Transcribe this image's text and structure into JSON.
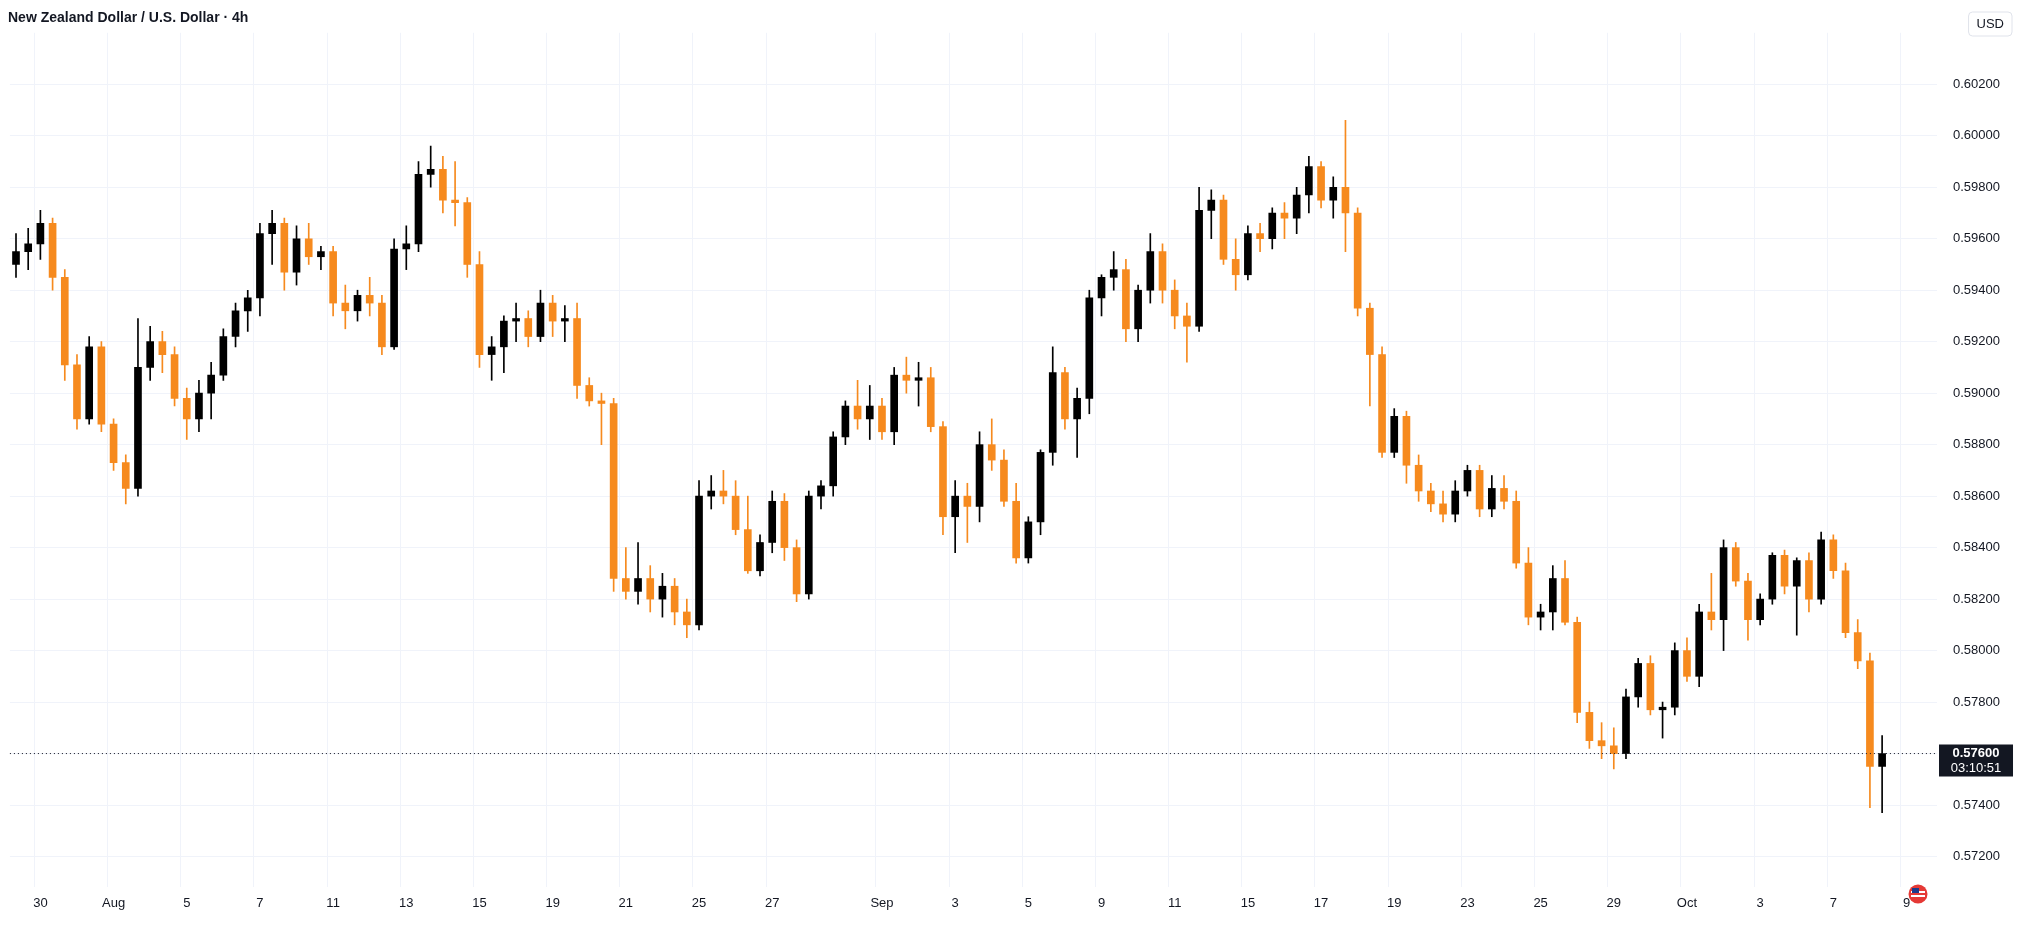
{
  "chart_data": {
    "type": "candlestick",
    "title": "New Zealand Dollar / U.S. Dollar · 4h",
    "categories": [
      null,
      null,
      "30",
      null,
      null,
      null,
      null,
      null,
      "Aug",
      null,
      null,
      null,
      null,
      null,
      "5",
      null,
      null,
      null,
      null,
      null,
      "7",
      null,
      null,
      null,
      null,
      null,
      "11",
      null,
      null,
      null,
      null,
      null,
      "13",
      null,
      null,
      null,
      null,
      null,
      "15",
      null,
      null,
      null,
      null,
      null,
      "19",
      null,
      null,
      null,
      null,
      null,
      "21",
      null,
      null,
      null,
      null,
      null,
      "25",
      null,
      null,
      null,
      null,
      null,
      "27",
      null,
      null,
      null,
      null,
      null,
      null,
      null,
      null,
      "Sep",
      null,
      null,
      null,
      null,
      null,
      "3",
      null,
      null,
      null,
      null,
      null,
      "5",
      null,
      null,
      null,
      null,
      null,
      "9",
      null,
      null,
      null,
      null,
      null,
      "11",
      null,
      null,
      null,
      null,
      null,
      "15",
      null,
      null,
      null,
      null,
      null,
      "17",
      null,
      null,
      null,
      null,
      null,
      "19",
      null,
      null,
      null,
      null,
      null,
      "23",
      null,
      null,
      null,
      null,
      null,
      "25",
      null,
      null,
      null,
      null,
      null,
      "29",
      null,
      null,
      null,
      null,
      null,
      "Oct",
      null,
      null,
      null,
      null,
      null,
      "3",
      null,
      null,
      null,
      null,
      null,
      "7",
      null,
      null,
      null,
      null,
      null,
      "9",
      null,
      null
    ],
    "ohlc": [
      [
        0.595,
        0.5962,
        0.5945,
        0.5955
      ],
      [
        0.5955,
        0.5964,
        0.5948,
        0.5958
      ],
      [
        0.5958,
        0.5971,
        0.5952,
        0.5966
      ],
      [
        0.5966,
        0.5968,
        0.594,
        0.5945
      ],
      [
        0.5945,
        0.5948,
        0.5905,
        0.5911
      ],
      [
        0.5911,
        0.5915,
        0.5886,
        0.589
      ],
      [
        0.589,
        0.5922,
        0.5888,
        0.5918
      ],
      [
        0.5918,
        0.592,
        0.5885,
        0.5888
      ],
      [
        0.5888,
        0.589,
        0.587,
        0.5873
      ],
      [
        0.5873,
        0.5876,
        0.5857,
        0.5863
      ],
      [
        0.5863,
        0.5929,
        0.586,
        0.591
      ],
      [
        0.591,
        0.5926,
        0.5905,
        0.592
      ],
      [
        0.592,
        0.5924,
        0.5908,
        0.5915
      ],
      [
        0.5915,
        0.5918,
        0.5895,
        0.5898
      ],
      [
        0.5898,
        0.5902,
        0.5882,
        0.589
      ],
      [
        0.589,
        0.5905,
        0.5885,
        0.59
      ],
      [
        0.59,
        0.5912,
        0.589,
        0.5907
      ],
      [
        0.5907,
        0.5925,
        0.5905,
        0.5922
      ],
      [
        0.5922,
        0.5935,
        0.5918,
        0.5932
      ],
      [
        0.5932,
        0.594,
        0.5924,
        0.5937
      ],
      [
        0.5937,
        0.5966,
        0.593,
        0.5962
      ],
      [
        0.5962,
        0.5971,
        0.595,
        0.5966
      ],
      [
        0.5966,
        0.5968,
        0.594,
        0.5947
      ],
      [
        0.5947,
        0.5965,
        0.5942,
        0.596
      ],
      [
        0.596,
        0.5966,
        0.595,
        0.5953
      ],
      [
        0.5953,
        0.5957,
        0.5948,
        0.5955
      ],
      [
        0.5955,
        0.5957,
        0.593,
        0.5935
      ],
      [
        0.5935,
        0.5942,
        0.5925,
        0.5932
      ],
      [
        0.5932,
        0.594,
        0.5928,
        0.5938
      ],
      [
        0.5938,
        0.5945,
        0.593,
        0.5935
      ],
      [
        0.5935,
        0.5938,
        0.5915,
        0.5918
      ],
      [
        0.5918,
        0.596,
        0.5917,
        0.5956
      ],
      [
        0.5956,
        0.5965,
        0.5948,
        0.5958
      ],
      [
        0.5958,
        0.599,
        0.5955,
        0.5985
      ],
      [
        0.5985,
        0.5996,
        0.598,
        0.5987
      ],
      [
        0.5987,
        0.5992,
        0.597,
        0.5975
      ],
      [
        0.5975,
        0.599,
        0.5965,
        0.5974
      ],
      [
        0.5974,
        0.5976,
        0.5945,
        0.595
      ],
      [
        0.595,
        0.5955,
        0.591,
        0.5915
      ],
      [
        0.5915,
        0.5922,
        0.5905,
        0.5918
      ],
      [
        0.5918,
        0.593,
        0.5908,
        0.5928
      ],
      [
        0.5928,
        0.5935,
        0.592,
        0.5929
      ],
      [
        0.5929,
        0.5932,
        0.5918,
        0.5922
      ],
      [
        0.5922,
        0.594,
        0.592,
        0.5935
      ],
      [
        0.5935,
        0.5938,
        0.5922,
        0.5928
      ],
      [
        0.5928,
        0.5934,
        0.592,
        0.5929
      ],
      [
        0.5929,
        0.5935,
        0.5898,
        0.5903
      ],
      [
        0.5903,
        0.5906,
        0.5895,
        0.5897
      ],
      [
        0.5897,
        0.59,
        0.588,
        0.5896
      ],
      [
        0.5896,
        0.5898,
        0.5823,
        0.5828
      ],
      [
        0.5828,
        0.584,
        0.582,
        0.5823
      ],
      [
        0.5823,
        0.5842,
        0.5818,
        0.5828
      ],
      [
        0.5828,
        0.5833,
        0.5815,
        0.582
      ],
      [
        0.582,
        0.583,
        0.5813,
        0.5825
      ],
      [
        0.5825,
        0.5828,
        0.581,
        0.5815
      ],
      [
        0.5815,
        0.582,
        0.5805,
        0.581
      ],
      [
        0.581,
        0.5866,
        0.5808,
        0.586
      ],
      [
        0.586,
        0.5868,
        0.5855,
        0.5862
      ],
      [
        0.5862,
        0.587,
        0.5857,
        0.586
      ],
      [
        0.586,
        0.5866,
        0.5845,
        0.5847
      ],
      [
        0.5847,
        0.586,
        0.583,
        0.5831
      ],
      [
        0.5831,
        0.5845,
        0.5829,
        0.5842
      ],
      [
        0.5842,
        0.5862,
        0.5838,
        0.5858
      ],
      [
        0.5858,
        0.5861,
        0.5835,
        0.584
      ],
      [
        0.584,
        0.5843,
        0.5819,
        0.5822
      ],
      [
        0.5822,
        0.5862,
        0.582,
        0.586
      ],
      [
        0.586,
        0.5866,
        0.5855,
        0.5864
      ],
      [
        0.5864,
        0.5885,
        0.586,
        0.5883
      ],
      [
        0.5883,
        0.5897,
        0.588,
        0.5895
      ],
      [
        0.5895,
        0.5905,
        0.5886,
        0.589
      ],
      [
        0.589,
        0.5903,
        0.5882,
        0.5895
      ],
      [
        0.5895,
        0.5898,
        0.5882,
        0.5885
      ],
      [
        0.5885,
        0.591,
        0.588,
        0.5907
      ],
      [
        0.5907,
        0.5914,
        0.59,
        0.5905
      ],
      [
        0.5905,
        0.5912,
        0.5895,
        0.5906
      ],
      [
        0.5906,
        0.591,
        0.5885,
        0.5887
      ],
      [
        0.5887,
        0.5889,
        0.5845,
        0.5852
      ],
      [
        0.5852,
        0.5866,
        0.5838,
        0.586
      ],
      [
        0.586,
        0.5865,
        0.5842,
        0.5856
      ],
      [
        0.5856,
        0.5885,
        0.585,
        0.588
      ],
      [
        0.588,
        0.589,
        0.587,
        0.5874
      ],
      [
        0.5874,
        0.5878,
        0.5856,
        0.5858
      ],
      [
        0.5858,
        0.5865,
        0.5834,
        0.5836
      ],
      [
        0.5836,
        0.5852,
        0.5834,
        0.585
      ],
      [
        0.585,
        0.5878,
        0.5845,
        0.5877
      ],
      [
        0.5877,
        0.5918,
        0.5872,
        0.5908
      ],
      [
        0.5908,
        0.591,
        0.5886,
        0.589
      ],
      [
        0.589,
        0.5902,
        0.5875,
        0.5898
      ],
      [
        0.5898,
        0.594,
        0.5892,
        0.5937
      ],
      [
        0.5937,
        0.5946,
        0.593,
        0.5945
      ],
      [
        0.5945,
        0.5955,
        0.594,
        0.5948
      ],
      [
        0.5948,
        0.5952,
        0.592,
        0.5925
      ],
      [
        0.5925,
        0.5942,
        0.592,
        0.594
      ],
      [
        0.594,
        0.5962,
        0.5935,
        0.5955
      ],
      [
        0.5955,
        0.5958,
        0.5935,
        0.594
      ],
      [
        0.594,
        0.5944,
        0.5925,
        0.593
      ],
      [
        0.593,
        0.5935,
        0.5912,
        0.5926
      ],
      [
        0.5926,
        0.598,
        0.5924,
        0.5971
      ],
      [
        0.5971,
        0.5979,
        0.596,
        0.5975
      ],
      [
        0.5975,
        0.5977,
        0.595,
        0.5952
      ],
      [
        0.5952,
        0.596,
        0.594,
        0.5946
      ],
      [
        0.5946,
        0.5965,
        0.5944,
        0.5962
      ],
      [
        0.5962,
        0.5966,
        0.5955,
        0.596
      ],
      [
        0.596,
        0.5972,
        0.5956,
        0.597
      ],
      [
        0.597,
        0.5974,
        0.596,
        0.5968
      ],
      [
        0.5968,
        0.598,
        0.5962,
        0.5977
      ],
      [
        0.5977,
        0.5992,
        0.597,
        0.5988
      ],
      [
        0.5988,
        0.599,
        0.5972,
        0.5975
      ],
      [
        0.5975,
        0.5984,
        0.5968,
        0.598
      ],
      [
        0.598,
        0.6006,
        0.5955,
        0.597
      ],
      [
        0.597,
        0.5972,
        0.593,
        0.5933
      ],
      [
        0.5933,
        0.5935,
        0.5895,
        0.5915
      ],
      [
        0.5915,
        0.5918,
        0.5875,
        0.5877
      ],
      [
        0.5877,
        0.5894,
        0.5875,
        0.5891
      ],
      [
        0.5891,
        0.5893,
        0.5865,
        0.5872
      ],
      [
        0.5872,
        0.5876,
        0.5858,
        0.5862
      ],
      [
        0.5862,
        0.5865,
        0.5854,
        0.5857
      ],
      [
        0.5857,
        0.5862,
        0.585,
        0.5853
      ],
      [
        0.5853,
        0.5866,
        0.585,
        0.5862
      ],
      [
        0.5862,
        0.5872,
        0.586,
        0.587
      ],
      [
        0.587,
        0.5872,
        0.5852,
        0.5855
      ],
      [
        0.5855,
        0.5868,
        0.5852,
        0.5863
      ],
      [
        0.5863,
        0.5868,
        0.5855,
        0.5858
      ],
      [
        0.5858,
        0.5862,
        0.5832,
        0.5834
      ],
      [
        0.5834,
        0.584,
        0.581,
        0.5813
      ],
      [
        0.5813,
        0.5818,
        0.5808,
        0.5815
      ],
      [
        0.5815,
        0.5833,
        0.5808,
        0.5828
      ],
      [
        0.5828,
        0.5835,
        0.581,
        0.5811
      ],
      [
        0.5811,
        0.5813,
        0.5772,
        0.5776
      ],
      [
        0.5776,
        0.578,
        0.5762,
        0.5765
      ],
      [
        0.5765,
        0.5772,
        0.5758,
        0.5763
      ],
      [
        0.5763,
        0.577,
        0.5754,
        0.576
      ],
      [
        0.576,
        0.5785,
        0.5758,
        0.5782
      ],
      [
        0.5782,
        0.5797,
        0.5778,
        0.5795
      ],
      [
        0.5795,
        0.5798,
        0.5775,
        0.5777
      ],
      [
        0.5777,
        0.578,
        0.5766,
        0.5778
      ],
      [
        0.5778,
        0.5803,
        0.5775,
        0.58
      ],
      [
        0.58,
        0.5805,
        0.5788,
        0.579
      ],
      [
        0.579,
        0.5818,
        0.5786,
        0.5815
      ],
      [
        0.5815,
        0.583,
        0.5808,
        0.5812
      ],
      [
        0.5812,
        0.5843,
        0.58,
        0.584
      ],
      [
        0.584,
        0.5842,
        0.5825,
        0.5827
      ],
      [
        0.5827,
        0.583,
        0.5804,
        0.5812
      ],
      [
        0.5812,
        0.5822,
        0.581,
        0.582
      ],
      [
        0.582,
        0.5838,
        0.5818,
        0.5837
      ],
      [
        0.5837,
        0.5839,
        0.5822,
        0.5825
      ],
      [
        0.5825,
        0.5836,
        0.5806,
        0.5835
      ],
      [
        0.5835,
        0.5838,
        0.5815,
        0.582
      ],
      [
        0.582,
        0.5846,
        0.5818,
        0.5843
      ],
      [
        0.5843,
        0.5845,
        0.5828,
        0.5831
      ],
      [
        0.5831,
        0.5834,
        0.5805,
        0.5807
      ],
      [
        0.5807,
        0.5812,
        0.5793,
        0.5796
      ],
      [
        0.5796,
        0.5799,
        0.5739,
        0.5755
      ],
      [
        0.5755,
        0.5767,
        0.5737,
        0.576
      ],
      null,
      null,
      null,
      null
    ],
    "colors": [
      "#000000",
      "#000000",
      "#000000",
      "#f68a1e",
      "#f68a1e",
      "#f68a1e",
      "#000000",
      "#f68a1e",
      "#f68a1e",
      "#f68a1e",
      "#000000",
      "#000000",
      "#f68a1e",
      "#f68a1e",
      "#f68a1e",
      "#000000",
      "#000000",
      "#000000",
      "#000000",
      "#000000",
      "#000000",
      "#000000",
      "#f68a1e",
      "#000000",
      "#f68a1e",
      "#000000",
      "#f68a1e",
      "#f68a1e",
      "#000000",
      "#f68a1e",
      "#f68a1e",
      "#000000",
      "#000000",
      "#000000",
      "#000000",
      "#f68a1e",
      "#f68a1e",
      "#f68a1e",
      "#f68a1e",
      "#000000",
      "#000000",
      "#000000",
      "#f68a1e",
      "#000000",
      "#f68a1e",
      "#000000",
      "#f68a1e",
      "#f68a1e",
      "#f68a1e",
      "#f68a1e",
      "#f68a1e",
      "#000000",
      "#f68a1e",
      "#000000",
      "#f68a1e",
      "#f68a1e",
      "#000000",
      "#000000",
      "#f68a1e",
      "#f68a1e",
      "#f68a1e",
      "#000000",
      "#000000",
      "#f68a1e",
      "#f68a1e",
      "#000000",
      "#000000",
      "#000000",
      "#000000",
      "#f68a1e",
      "#000000",
      "#f68a1e",
      "#000000",
      "#f68a1e",
      "#000000",
      "#f68a1e",
      "#f68a1e",
      "#000000",
      "#f68a1e",
      "#000000",
      "#f68a1e",
      "#f68a1e",
      "#f68a1e",
      "#000000",
      "#000000",
      "#000000",
      "#f68a1e",
      "#000000",
      "#000000",
      "#000000",
      "#000000",
      "#f68a1e",
      "#000000",
      "#000000",
      "#f68a1e",
      "#f68a1e",
      "#f68a1e",
      "#000000",
      "#000000",
      "#f68a1e",
      "#f68a1e",
      "#000000",
      "#f68a1e",
      "#000000",
      "#f68a1e",
      "#000000",
      "#000000",
      "#f68a1e",
      "#000000",
      "#f68a1e",
      "#f68a1e",
      "#f68a1e",
      "#f68a1e",
      "#000000",
      "#f68a1e",
      "#f68a1e",
      "#f68a1e",
      "#f68a1e",
      "#000000",
      "#000000",
      "#f68a1e",
      "#000000",
      "#f68a1e",
      "#f68a1e",
      "#f68a1e",
      "#000000",
      "#000000",
      "#f68a1e",
      "#f68a1e",
      "#f68a1e",
      "#f68a1e",
      "#f68a1e",
      "#000000",
      "#000000",
      "#f68a1e",
      "#000000",
      "#000000",
      "#f68a1e",
      "#000000",
      "#f68a1e",
      "#000000",
      "#f68a1e",
      "#f68a1e",
      "#000000",
      "#000000",
      "#f68a1e",
      "#000000",
      "#f68a1e",
      "#000000",
      "#f68a1e",
      "#f68a1e",
      "#f68a1e",
      "#f68a1e",
      "#000000",
      null,
      null,
      null,
      null
    ],
    "ylim": [
      0.5708,
      0.604
    ],
    "yticks": [
      {
        "value": 0.572,
        "label": "0.57200"
      },
      {
        "value": 0.574,
        "label": "0.57400"
      },
      {
        "value": 0.576,
        "label": null
      },
      {
        "value": 0.578,
        "label": "0.57800"
      },
      {
        "value": 0.58,
        "label": "0.58000"
      },
      {
        "value": 0.582,
        "label": "0.58200"
      },
      {
        "value": 0.584,
        "label": "0.58400"
      },
      {
        "value": 0.586,
        "label": "0.58600"
      },
      {
        "value": 0.588,
        "label": "0.58800"
      },
      {
        "value": 0.59,
        "label": "0.59000"
      },
      {
        "value": 0.592,
        "label": "0.59200"
      },
      {
        "value": 0.594,
        "label": "0.59400"
      },
      {
        "value": 0.596,
        "label": "0.59600"
      },
      {
        "value": 0.598,
        "label": "0.59800"
      },
      {
        "value": 0.6,
        "label": "0.60000"
      },
      {
        "value": 0.602,
        "label": "0.60200"
      }
    ],
    "ref_lines": [
      {
        "axis": "y",
        "value": 0.576,
        "label": "0.57600",
        "color": "#131722",
        "line_style": "dotted"
      }
    ],
    "annotations": [
      "USD",
      "03:10:51"
    ],
    "grid": true,
    "legend": false
  }
}
